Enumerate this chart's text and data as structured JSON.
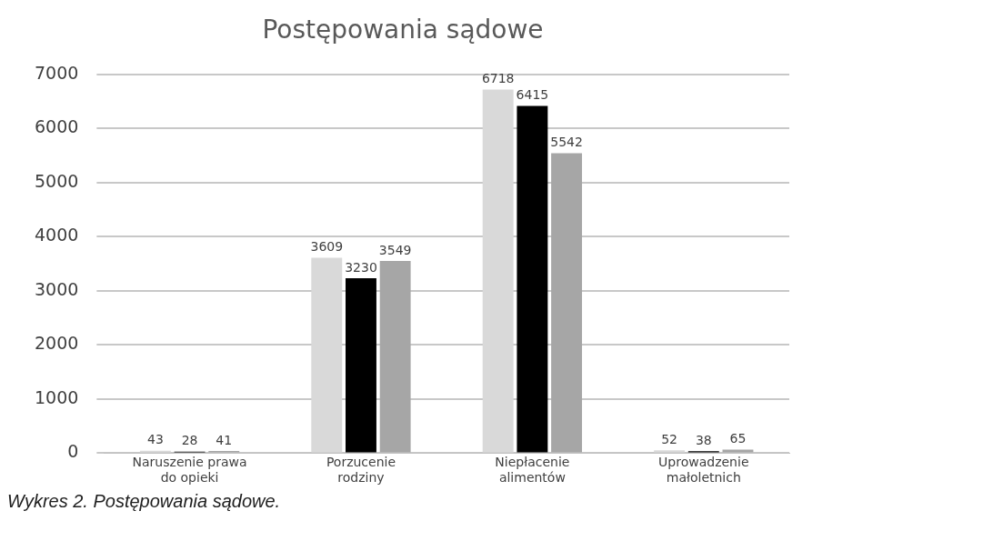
{
  "chart_data": {
    "type": "bar",
    "title": "Postępowania sądowe",
    "categories": [
      "Naruszenie prawa do opieki",
      "Porzucenie rodziny",
      "Niepłacenie alimentów",
      "Uprowadzenie małoletnich"
    ],
    "series": [
      {
        "color": "#d9d9d9",
        "values": [
          43,
          3609,
          6718,
          52
        ]
      },
      {
        "color": "#000000",
        "values": [
          28,
          3230,
          6415,
          38
        ]
      },
      {
        "color": "#a6a6a6",
        "values": [
          41,
          3549,
          5542,
          65
        ]
      }
    ],
    "ylim": [
      0,
      7000
    ],
    "yticks": [
      0,
      1000,
      2000,
      3000,
      4000,
      5000,
      6000,
      7000
    ],
    "grid": "y",
    "legend": false,
    "data_labels": true,
    "annotations": [
      "Wykres 2. Postępowania sądowe."
    ]
  }
}
